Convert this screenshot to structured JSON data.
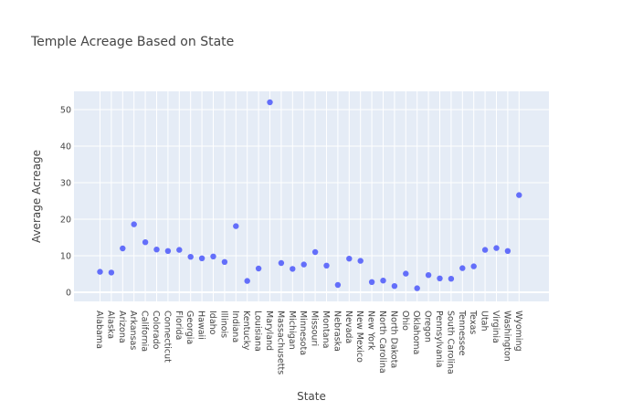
{
  "chart_data": {
    "type": "scatter",
    "title": "Temple Acreage Based on State",
    "xlabel": "State",
    "ylabel": "Average Acreage",
    "ylim": [
      -2.5,
      55
    ],
    "yticks": [
      0,
      10,
      20,
      30,
      40,
      50
    ],
    "grid": true,
    "marker_color": "#636efa",
    "plot_bg": "#e5ecf6",
    "categories": [
      "Alabama",
      "Alaska",
      "Arizona",
      "Arkansas",
      "California",
      "Colorado",
      "Connecticut",
      "Florida",
      "Georgia",
      "Hawaii",
      "Idaho",
      "Illinois",
      "Indiana",
      "Kentucky",
      "Louisiana",
      "Maryland",
      "Massachusetts",
      "Michigan",
      "Minnesota",
      "Missouri",
      "Montana",
      "Nebraska",
      "Nevada",
      "New Mexico",
      "New York",
      "North Carolina",
      "North Dakota",
      "Ohio",
      "Oklahoma",
      "Oregon",
      "Pennsylvania",
      "South Carolina",
      "Tennessee",
      "Texas",
      "Utah",
      "Virginia",
      "Washington",
      "Wyoming"
    ],
    "values": [
      5.6,
      5.4,
      12.0,
      18.6,
      13.7,
      11.7,
      11.3,
      11.6,
      9.7,
      9.3,
      9.8,
      8.3,
      18.1,
      3.1,
      6.5,
      52.0,
      8.0,
      6.4,
      7.6,
      11.0,
      7.3,
      2.0,
      9.2,
      8.6,
      2.8,
      3.2,
      1.7,
      5.1,
      1.1,
      4.7,
      3.8,
      3.7,
      6.6,
      7.1,
      11.6,
      12.1,
      11.3,
      26.6
    ]
  }
}
